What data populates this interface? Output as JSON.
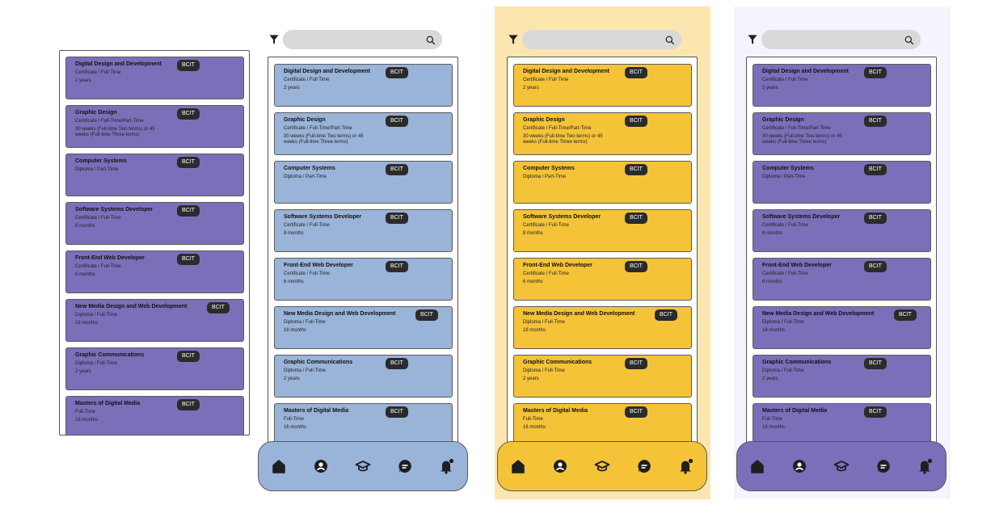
{
  "colors": {
    "blue": "#9ab3d8",
    "yellow": "#f4c338",
    "purple": "#7b6fba",
    "badge": "#2b2b2b",
    "yellow_backdrop": "#fbe6b0",
    "lavender_backdrop": "#f4f4fe"
  },
  "badge_label": "BCIT",
  "programs": [
    {
      "title": "Digital Design and Development",
      "sub": "Certificate /  Full Time",
      "duration": "2 years"
    },
    {
      "title": "Graphic Design",
      "sub": "Certificate /  Full-Time/Part-Time",
      "duration": "30 weeks (Full-time Two terms) or 45 weeks (Full-time Three terms)"
    },
    {
      "title": "Computer Systems",
      "sub": "Diploma /  Part-Time",
      "duration": ""
    },
    {
      "title": "Software Systems Developer",
      "sub": "Certificate /  Full-Time",
      "duration": "8 months"
    },
    {
      "title": "Front-End Web Developer",
      "sub": "Certificate /  Full-Time",
      "duration": "6 months"
    },
    {
      "title": "New Media Design and Web Development",
      "sub": "Diploma /  Full-Time",
      "duration": "18 months"
    },
    {
      "title": "Graphic Communications",
      "sub": "Diploma /  Full-Time",
      "duration": "2 years"
    },
    {
      "title": "Masters of Digital Media",
      "sub": "Full-Time",
      "duration": "16 months"
    }
  ],
  "nav_icons": [
    "home-icon",
    "profile-icon",
    "graduation-cap-icon",
    "chat-icon",
    "notification-bell-icon"
  ],
  "search": {
    "placeholder": ""
  }
}
